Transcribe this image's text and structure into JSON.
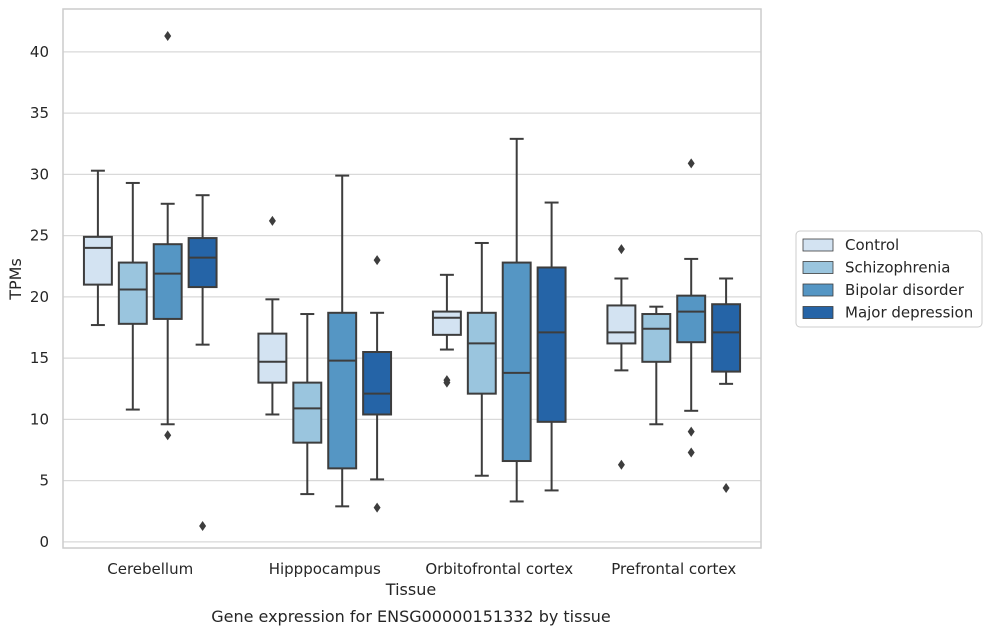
{
  "chart_data": {
    "type": "box",
    "title": "",
    "caption": "Gene expression for ENSG00000151332 by tissue",
    "xlabel": "Tissue",
    "ylabel": "TPMs",
    "ylim": [
      -0.5,
      43.5
    ],
    "yticks": [
      0,
      5,
      10,
      15,
      20,
      25,
      30,
      35,
      40
    ],
    "grid": "horizontal",
    "legend_position": "right",
    "categories": [
      "Cerebellum",
      "Hipppocampus",
      "Orbitofrontal cortex",
      "Prefrontal cortex"
    ],
    "series": [
      {
        "name": "Control",
        "color": "#d3e3f2",
        "boxes": [
          {
            "whisker_low": 17.7,
            "q1": 21.0,
            "median": 24.0,
            "q3": 24.9,
            "whisker_high": 30.3,
            "outliers": []
          },
          {
            "whisker_low": 10.4,
            "q1": 13.0,
            "median": 14.7,
            "q3": 17.0,
            "whisker_high": 19.8,
            "outliers": [
              26.2
            ]
          },
          {
            "whisker_low": 15.7,
            "q1": 16.9,
            "median": 18.3,
            "q3": 18.8,
            "whisker_high": 21.8,
            "outliers": [
              13.0,
              13.2
            ]
          },
          {
            "whisker_low": 14.0,
            "q1": 16.2,
            "median": 17.1,
            "q3": 19.3,
            "whisker_high": 21.5,
            "outliers": [
              23.9,
              6.3
            ]
          }
        ]
      },
      {
        "name": "Schizophrenia",
        "color": "#9ac5de",
        "boxes": [
          {
            "whisker_low": 10.8,
            "q1": 17.8,
            "median": 20.6,
            "q3": 22.8,
            "whisker_high": 29.3,
            "outliers": []
          },
          {
            "whisker_low": 3.9,
            "q1": 8.1,
            "median": 10.9,
            "q3": 13.0,
            "whisker_high": 18.6,
            "outliers": []
          },
          {
            "whisker_low": 5.4,
            "q1": 12.1,
            "median": 16.2,
            "q3": 18.7,
            "whisker_high": 24.4,
            "outliers": []
          },
          {
            "whisker_low": 9.6,
            "q1": 14.7,
            "median": 17.4,
            "q3": 18.6,
            "whisker_high": 19.2,
            "outliers": []
          }
        ]
      },
      {
        "name": "Bipolar disorder",
        "color": "#5596c4",
        "boxes": [
          {
            "whisker_low": 9.6,
            "q1": 18.2,
            "median": 21.9,
            "q3": 24.3,
            "whisker_high": 27.6,
            "outliers": [
              41.3,
              8.7
            ]
          },
          {
            "whisker_low": 2.9,
            "q1": 6.0,
            "median": 14.8,
            "q3": 18.7,
            "whisker_high": 29.9,
            "outliers": []
          },
          {
            "whisker_low": 3.3,
            "q1": 6.6,
            "median": 13.8,
            "q3": 22.8,
            "whisker_high": 32.9,
            "outliers": []
          },
          {
            "whisker_low": 10.7,
            "q1": 16.3,
            "median": 18.8,
            "q3": 20.1,
            "whisker_high": 23.1,
            "outliers": [
              30.9,
              9.0,
              7.3
            ]
          }
        ]
      },
      {
        "name": "Major depression",
        "color": "#2564a7",
        "boxes": [
          {
            "whisker_low": 16.1,
            "q1": 20.8,
            "median": 23.2,
            "q3": 24.8,
            "whisker_high": 28.3,
            "outliers": [
              1.3
            ]
          },
          {
            "whisker_low": 5.1,
            "q1": 10.4,
            "median": 12.1,
            "q3": 15.5,
            "whisker_high": 18.7,
            "outliers": [
              23.0,
              2.8
            ]
          },
          {
            "whisker_low": 4.2,
            "q1": 9.8,
            "median": 17.1,
            "q3": 22.4,
            "whisker_high": 27.7,
            "outliers": []
          },
          {
            "whisker_low": 12.9,
            "q1": 13.9,
            "median": 17.1,
            "q3": 19.4,
            "whisker_high": 21.5,
            "outliers": [
              4.4
            ]
          }
        ]
      }
    ]
  }
}
